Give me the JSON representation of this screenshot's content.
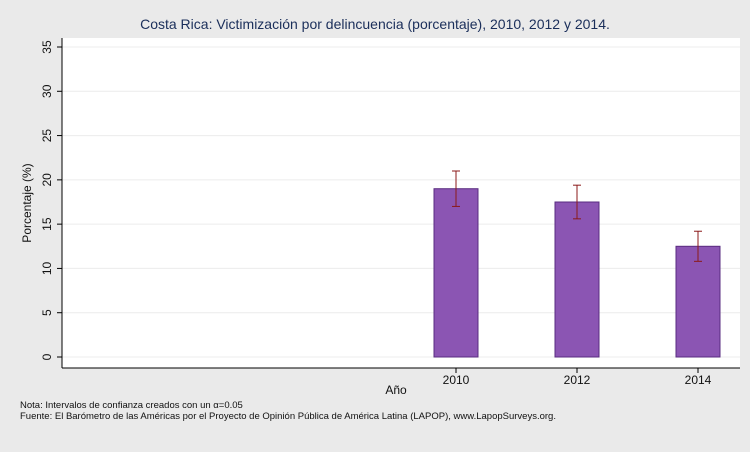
{
  "chart_data": {
    "type": "bar",
    "title": "Costa Rica: Victimización por delincuencia (porcentaje), 2010, 2012 y 2014.",
    "xlabel": "Año",
    "ylabel": "Porcentaje (%)",
    "categories": [
      "2010",
      "2012",
      "2014"
    ],
    "values": [
      19.0,
      17.5,
      12.5
    ],
    "ci_low": [
      17.0,
      15.6,
      10.8
    ],
    "ci_high": [
      21.0,
      19.4,
      14.2
    ],
    "ylim": [
      0,
      35
    ],
    "yticks": [
      0,
      5,
      10,
      15,
      20,
      25,
      30,
      35
    ],
    "grid": true,
    "colors": {
      "bar": "#8b55b3",
      "bar_edge": "#5a2c80",
      "error_bar": "#8b1a1a",
      "grid": "#ffffff",
      "background": "#eaeaea",
      "plot_background": "#ffffff",
      "title": "#1a2e5a"
    }
  },
  "notes": {
    "note": "Nota: Intervalos de confianza creados con un α=0.05",
    "source": "Fuente: El Barómetro de las Américas por el Proyecto de Opinión Pública de América Latina (LAPOP), www.LapopSurveys.org."
  }
}
